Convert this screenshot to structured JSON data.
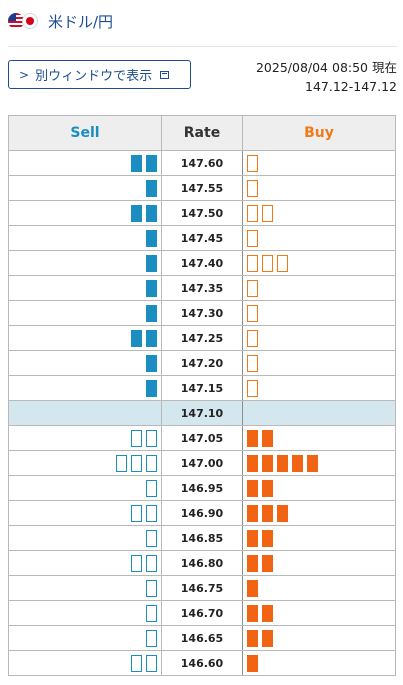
{
  "header": {
    "title": "米ドル/円",
    "flags": [
      "us-flag-icon",
      "jp-flag-icon"
    ]
  },
  "toolbar": {
    "window_button_label": "別ウィンドウで表示"
  },
  "status": {
    "timestamp": "2025/08/04 08:50 現在",
    "price_range": "147.12-147.12"
  },
  "table": {
    "headers": {
      "sell": "Sell",
      "rate": "Rate",
      "buy": "Buy"
    },
    "current_rate": "147.10",
    "rows": [
      {
        "rate": "147.60",
        "sell": 2,
        "buy": 1
      },
      {
        "rate": "147.55",
        "sell": 1,
        "buy": 1
      },
      {
        "rate": "147.50",
        "sell": 2,
        "buy": 2
      },
      {
        "rate": "147.45",
        "sell": 1,
        "buy": 1
      },
      {
        "rate": "147.40",
        "sell": 1,
        "buy": 3
      },
      {
        "rate": "147.35",
        "sell": 1,
        "buy": 1
      },
      {
        "rate": "147.30",
        "sell": 1,
        "buy": 1
      },
      {
        "rate": "147.25",
        "sell": 2,
        "buy": 1
      },
      {
        "rate": "147.20",
        "sell": 1,
        "buy": 1
      },
      {
        "rate": "147.15",
        "sell": 1,
        "buy": 1
      },
      {
        "rate": "147.10",
        "sell": 0,
        "buy": 0
      },
      {
        "rate": "147.05",
        "sell": 2,
        "buy": 2
      },
      {
        "rate": "147.00",
        "sell": 3,
        "buy": 5
      },
      {
        "rate": "146.95",
        "sell": 1,
        "buy": 2
      },
      {
        "rate": "146.90",
        "sell": 2,
        "buy": 3
      },
      {
        "rate": "146.85",
        "sell": 1,
        "buy": 2
      },
      {
        "rate": "146.80",
        "sell": 2,
        "buy": 2
      },
      {
        "rate": "146.75",
        "sell": 1,
        "buy": 1
      },
      {
        "rate": "146.70",
        "sell": 1,
        "buy": 2
      },
      {
        "rate": "146.65",
        "sell": 1,
        "buy": 2
      },
      {
        "rate": "146.60",
        "sell": 2,
        "buy": 1
      }
    ]
  },
  "colors": {
    "sell": "#1b8dc1",
    "buy": "#f06414",
    "title": "#1d4e91",
    "current_row": "#d4e7ee"
  }
}
